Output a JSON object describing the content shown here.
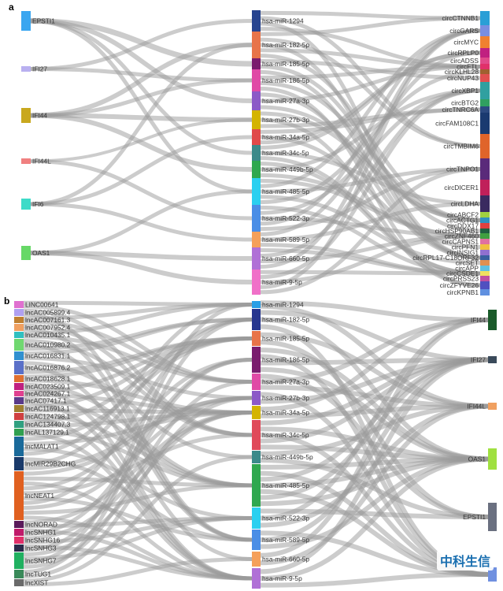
{
  "panel_a": {
    "label": "a",
    "sources": [
      {
        "name": "EPSTI1",
        "color": "#3aa6f0"
      },
      {
        "name": "IFI27",
        "color": "#b9b0f0"
      },
      {
        "name": "IFI44",
        "color": "#c9a81e"
      },
      {
        "name": "IFI44L",
        "color": "#f08080"
      },
      {
        "name": "IFI6",
        "color": "#3ddbc8"
      },
      {
        "name": "OAS1",
        "color": "#67d867"
      }
    ],
    "mirnas": [
      {
        "name": "hsa-miR-1294",
        "color": "#27448f"
      },
      {
        "name": "hsa-miR-182-5p",
        "color": "#e8744a"
      },
      {
        "name": "hsa-miR-185-5p",
        "color": "#7a1c6e"
      },
      {
        "name": "hsa-miR-186-5p",
        "color": "#e04aa6"
      },
      {
        "name": "hsa-miR-27a-3p",
        "color": "#8c5ac7"
      },
      {
        "name": "hsa-miR-27b-3p",
        "color": "#d4b400"
      },
      {
        "name": "hsa-miR-34a-5p",
        "color": "#e04a4a"
      },
      {
        "name": "hsa-miR-34c-5p",
        "color": "#3b8a8a"
      },
      {
        "name": "hsa-miR-449b-5p",
        "color": "#2fa84f"
      },
      {
        "name": "hsa-miR-485-5p",
        "color": "#2ad0f0"
      },
      {
        "name": "hsa-miR-522-3p",
        "color": "#4a8ee6"
      },
      {
        "name": "hsa-miR-589-5p",
        "color": "#f5a05a"
      },
      {
        "name": "hsa-miR-660-5p",
        "color": "#b070d6"
      },
      {
        "name": "hsa-miR-9-5p",
        "color": "#f070c8"
      }
    ],
    "targets": [
      {
        "name": "circCTNNB1",
        "color": "#2a9fd6"
      },
      {
        "name": "circGARS",
        "color": "#7a8ee0"
      },
      {
        "name": "circMYC",
        "color": "#f08030"
      },
      {
        "name": "circRPLP0",
        "color": "#c02080"
      },
      {
        "name": "circADSS",
        "color": "#e04a8a"
      },
      {
        "name": "circFTL",
        "color": "#e0306a"
      },
      {
        "name": "circKLHL28",
        "color": "#a06030"
      },
      {
        "name": "circNUP43",
        "color": "#e05050"
      },
      {
        "name": "circXBP1",
        "color": "#30a0a0"
      },
      {
        "name": "circBTG2",
        "color": "#30a060"
      },
      {
        "name": "circTNRC6A",
        "color": "#2c4a80"
      },
      {
        "name": "circFAM108C1",
        "color": "#1a3a70"
      },
      {
        "name": "circTMBIM6",
        "color": "#e0642a"
      },
      {
        "name": "circTNPO1",
        "color": "#5a2a7a"
      },
      {
        "name": "circDICER1",
        "color": "#c0205a"
      },
      {
        "name": "circLDHA",
        "color": "#3a2a60"
      },
      {
        "name": "circABCF2",
        "color": "#a0d040"
      },
      {
        "name": "circACTG1",
        "color": "#3090c0"
      },
      {
        "name": "circDDX17",
        "color": "#e04040"
      },
      {
        "name": "circHSP90AB1",
        "color": "#206040"
      },
      {
        "name": "circZNF460",
        "color": "#40a040"
      },
      {
        "name": "circCAPNS1",
        "color": "#e070a0"
      },
      {
        "name": "circPFN1",
        "color": "#f0c040"
      },
      {
        "name": "circINSIG1",
        "color": "#9070d0"
      },
      {
        "name": "circRPL17-C18ORF32",
        "color": "#3a60a0"
      },
      {
        "name": "circSET",
        "color": "#e09050"
      },
      {
        "name": "circAPP",
        "color": "#60c0e0"
      },
      {
        "name": "circCSDE1",
        "color": "#f0e060"
      },
      {
        "name": "circPRSS23",
        "color": "#c050a0"
      },
      {
        "name": "circZFYVE26",
        "color": "#5050c0"
      },
      {
        "name": "circKPNB1",
        "color": "#6090e0"
      }
    ]
  },
  "panel_b": {
    "label": "b",
    "sources": [
      {
        "name": "LINC00641",
        "color": "#e070d0"
      },
      {
        "name": "lncAC005899.4",
        "color": "#b0a0f0"
      },
      {
        "name": "lncAC007161.3",
        "color": "#c08030"
      },
      {
        "name": "lncAC007952.4",
        "color": "#f0a060"
      },
      {
        "name": "lncAC010435.1",
        "color": "#30c0c0"
      },
      {
        "name": "lncAC010980.2",
        "color": "#70d870"
      },
      {
        "name": "lncAC016831.1",
        "color": "#3090d0"
      },
      {
        "name": "lncAC016876.2",
        "color": "#5a70c8"
      },
      {
        "name": "lncAC018628.1",
        "color": "#e07030"
      },
      {
        "name": "lncAC023509.1",
        "color": "#c02080"
      },
      {
        "name": "lncAC024267.1",
        "color": "#e04090"
      },
      {
        "name": "lncAC07417.1",
        "color": "#5a3a8a"
      },
      {
        "name": "lncAC116913.1",
        "color": "#a08030"
      },
      {
        "name": "lncAC124798.1",
        "color": "#d04040"
      },
      {
        "name": "lncAC134407.3",
        "color": "#30a080"
      },
      {
        "name": "lncAL137129.1",
        "color": "#30a050"
      },
      {
        "name": "lncMALAT1",
        "color": "#1a6a9a"
      },
      {
        "name": "lncMIR29B2CHG",
        "color": "#1a3a6a"
      },
      {
        "name": "lncNEAT1",
        "color": "#e06020"
      },
      {
        "name": "lncNORAD",
        "color": "#5a1a5a"
      },
      {
        "name": "lncSNHG1",
        "color": "#c01a6a"
      },
      {
        "name": "lncSNHG16",
        "color": "#e0306a"
      },
      {
        "name": "lncSNHG3",
        "color": "#2a2a4a"
      },
      {
        "name": "lncSNHG7",
        "color": "#20b060"
      },
      {
        "name": "lncTUG1",
        "color": "#3a8a5a"
      },
      {
        "name": "lncXIST",
        "color": "#6a6a6a"
      }
    ],
    "mirnas": [
      {
        "name": "hsa-miR-1294",
        "color": "#2a9fe6"
      },
      {
        "name": "hsa-miR-182-5p",
        "color": "#27368f"
      },
      {
        "name": "hsa-miR-185-5p",
        "color": "#e8744a"
      },
      {
        "name": "hsa-miR-186-5p",
        "color": "#7a1c6e"
      },
      {
        "name": "hsa-miR-27a-3p",
        "color": "#e04aa6"
      },
      {
        "name": "hsa-miR-27b-3p",
        "color": "#8c5ac7"
      },
      {
        "name": "hsa-miR-34a-5p",
        "color": "#d4b400"
      },
      {
        "name": "hsa-miR-34c-5p",
        "color": "#e04a5a"
      },
      {
        "name": "hsa-miR-449b-5p",
        "color": "#3b8a8a"
      },
      {
        "name": "hsa-miR-485-5p",
        "color": "#2fa84f"
      },
      {
        "name": "hsa-miR-522-3p",
        "color": "#2ad0f0"
      },
      {
        "name": "hsa-miR-589-5p",
        "color": "#4a8ee6"
      },
      {
        "name": "hsa-miR-660-5p",
        "color": "#f5a05a"
      },
      {
        "name": "hsa-miR-9-5p",
        "color": "#b070d6"
      }
    ],
    "targets": [
      {
        "name": "IFI44",
        "color": "#1a5a2a"
      },
      {
        "name": "IFI27",
        "color": "#3a4a5a"
      },
      {
        "name": "IFI44L",
        "color": "#f0a060"
      },
      {
        "name": "OAS1",
        "color": "#a0e040"
      },
      {
        "name": "EPSTI1",
        "color": "#6a7080"
      },
      {
        "name": "",
        "color": "#7090e0"
      }
    ]
  },
  "watermark": {
    "text": "中科生信"
  },
  "bottom_left_faint": {
    "text": "lncXIST"
  }
}
